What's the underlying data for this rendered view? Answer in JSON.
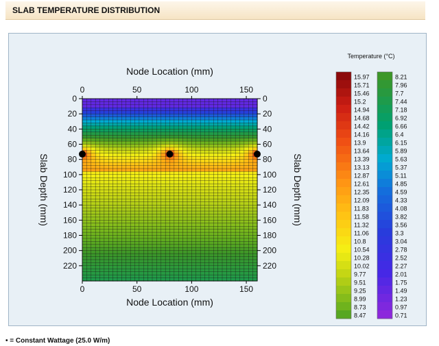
{
  "header": {
    "title": "SLAB TEMPERATURE DISTRIBUTION"
  },
  "footer": {
    "note": "• = Constant Wattage (25.0 W/m)"
  },
  "chart_data": {
    "type": "heatmap",
    "xlabel": "Node Location (mm)",
    "ylabel": "Slab Depth (mm)",
    "xlim": [
      0,
      160
    ],
    "ylim": [
      0,
      240
    ],
    "xticks": [
      "0",
      "50",
      "100",
      "150"
    ],
    "yticks": [
      "0",
      "20",
      "40",
      "60",
      "80",
      "100",
      "120",
      "140",
      "160",
      "180",
      "200",
      "220"
    ],
    "heating_nodes": [
      {
        "x": 0,
        "y": 73
      },
      {
        "x": 80,
        "y": 73
      },
      {
        "x": 160,
        "y": 73
      }
    ],
    "legend": {
      "title": "Temperature (°C)",
      "warm_scale": [
        "15.97",
        "15.71",
        "15.46",
        "15.2",
        "14.94",
        "14.68",
        "14.42",
        "14.16",
        "13.9",
        "13.64",
        "13.39",
        "13.13",
        "12.87",
        "12.61",
        "12.35",
        "12.09",
        "11.83",
        "11.58",
        "11.32",
        "11.06",
        "10.8",
        "10.54",
        "10.28",
        "10.02",
        "9.77",
        "9.51",
        "9.25",
        "8.99",
        "8.73",
        "8.47"
      ],
      "cool_scale": [
        "8.21",
        "7.96",
        "7.7",
        "7.44",
        "7.18",
        "6.92",
        "6.66",
        "6.4",
        "6.15",
        "5.89",
        "5.63",
        "5.37",
        "5.11",
        "4.85",
        "4.59",
        "4.33",
        "4.08",
        "3.82",
        "3.56",
        "3.3",
        "3.04",
        "2.78",
        "2.52",
        "2.27",
        "2.01",
        "1.75",
        "1.49",
        "1.23",
        "0.97",
        "0.71"
      ]
    }
  }
}
